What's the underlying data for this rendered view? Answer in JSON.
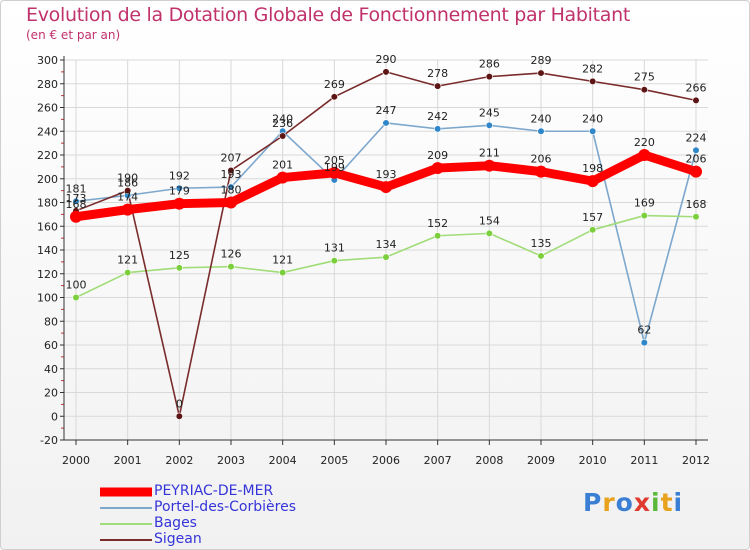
{
  "title": "Evolution de la Dotation Globale de Fonctionnement par Habitant",
  "subtitle": "(en € et par an)",
  "logo": "Proxiti",
  "chart_data": {
    "type": "line",
    "title": "Evolution de la Dotation Globale de Fonctionnement par Habitant",
    "subtitle": "(en € et par an)",
    "xlabel": "",
    "ylabel": "",
    "x": [
      "2000",
      "2001",
      "2002",
      "2003",
      "2004",
      "2005",
      "2006",
      "2007",
      "2008",
      "2009",
      "2010",
      "2011",
      "2012"
    ],
    "ylim": [
      -20,
      300
    ],
    "yticks": [
      -20,
      0,
      20,
      40,
      60,
      80,
      100,
      120,
      140,
      160,
      180,
      200,
      220,
      240,
      260,
      280,
      300
    ],
    "grid": true,
    "legend_position": "bottom-left",
    "series": [
      {
        "name": "PEYRIAC-DE-MER",
        "color": "#ff0000",
        "thick": true,
        "values": [
          168,
          174,
          179,
          180,
          201,
          205,
          193,
          209,
          211,
          206,
          198,
          220,
          206
        ]
      },
      {
        "name": "Portel-des-Corbières",
        "color": "#7da7cc",
        "marker": "#2f86c8",
        "values": [
          181,
          186,
          192,
          193,
          240,
          199,
          247,
          242,
          245,
          240,
          240,
          62,
          224
        ]
      },
      {
        "name": "Bages",
        "color": "#a0dc78",
        "marker": "#7ccf3c",
        "values": [
          100,
          121,
          125,
          126,
          121,
          131,
          134,
          152,
          154,
          135,
          157,
          169,
          168
        ]
      },
      {
        "name": "Sigean",
        "color": "#7a2c2c",
        "marker": "#5c1414",
        "values": [
          173,
          190,
          0,
          207,
          236,
          269,
          290,
          278,
          286,
          289,
          282,
          275,
          266
        ]
      }
    ]
  }
}
